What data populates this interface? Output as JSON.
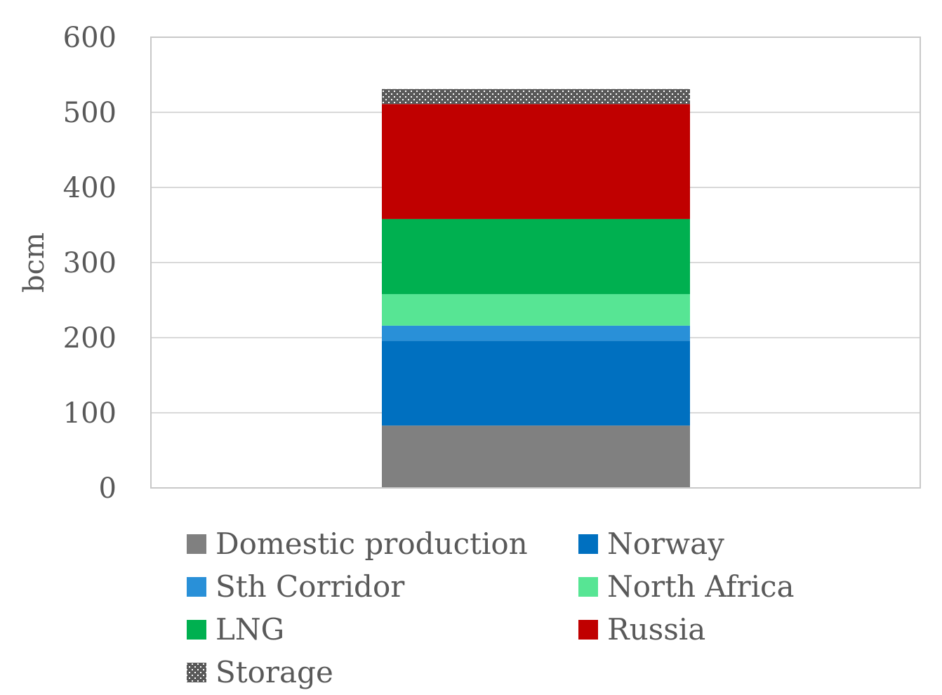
{
  "chart_data": {
    "type": "bar",
    "stacked": true,
    "categories": [
      ""
    ],
    "ylabel": "bcm",
    "xlabel": "",
    "ylim": [
      0,
      600
    ],
    "yticks": [
      0,
      100,
      200,
      300,
      400,
      500,
      600
    ],
    "grid": true,
    "legend_position": "bottom",
    "series": [
      {
        "name": "Domestic production",
        "values": [
          83
        ],
        "color": "#808080",
        "pattern": "solid"
      },
      {
        "name": "Norway",
        "values": [
          113
        ],
        "color": "#0070C0",
        "pattern": "solid"
      },
      {
        "name": "Sth Corridor",
        "values": [
          20
        ],
        "color": "#2990D8",
        "pattern": "solid"
      },
      {
        "name": "North Africa",
        "values": [
          42
        ],
        "color": "#57E594",
        "pattern": "solid"
      },
      {
        "name": "LNG",
        "values": [
          100
        ],
        "color": "#00B050",
        "pattern": "solid"
      },
      {
        "name": "Russia",
        "values": [
          153
        ],
        "color": "#C00000",
        "pattern": "solid"
      },
      {
        "name": "Storage",
        "values": [
          20
        ],
        "color": "#595959",
        "pattern": "dotted"
      }
    ]
  }
}
